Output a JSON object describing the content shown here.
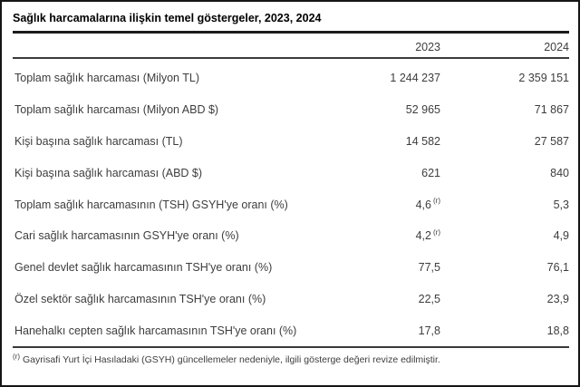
{
  "table": {
    "title": "Sağlık harcamalarına ilişkin temel göstergeler, 2023, 2024",
    "columns": {
      "col2023": "2023",
      "col2024": "2024"
    },
    "rows": [
      {
        "label": "Toplam sağlık harcaması (Milyon TL)",
        "y2023": "1 244 237",
        "y2024": "2 359 151"
      },
      {
        "label": "Toplam sağlık harcaması (Milyon ABD $)",
        "y2023": "52 965",
        "y2024": "71 867"
      },
      {
        "label": "Kişi başına sağlık harcaması (TL)",
        "y2023": "14 582",
        "y2024": "27 587"
      },
      {
        "label": "Kişi başına sağlık harcaması (ABD $)",
        "y2023": "621",
        "y2024": "840"
      },
      {
        "label": "Toplam sağlık harcamasının (TSH) GSYH'ye oranı (%)",
        "y2023": "4,6",
        "flag2023": "(r)",
        "y2024": "5,3"
      },
      {
        "label": "Cari sağlık harcamasının GSYH'ye oranı (%)",
        "y2023": "4,2",
        "flag2023": "(r)",
        "y2024": "4,9"
      },
      {
        "label": "Genel devlet sağlık harcamasının TSH'ye oranı (%)",
        "y2023": "77,5",
        "y2024": "76,1"
      },
      {
        "label": "Özel sektör sağlık harcamasının TSH'ye oranı (%)",
        "y2023": "22,5",
        "y2024": "23,9"
      },
      {
        "label": "Hanehalkı cepten sağlık harcamasının TSH'ye oranı (%)",
        "y2023": "17,8",
        "y2024": "18,8"
      }
    ],
    "footnote": {
      "marker": "(r)",
      "text": "Gayrisafi Yurt İçi Hasıladaki (GSYH) güncellemeler nedeniyle, ilgili gösterge değeri revize edilmiştir."
    }
  },
  "chart_data": {
    "type": "table",
    "title": "Sağlık harcamalarına ilişkin temel göstergeler, 2023, 2024",
    "columns": [
      "2023",
      "2024"
    ],
    "rows": [
      {
        "indicator": "Toplam sağlık harcaması (Milyon TL)",
        "2023": 1244237,
        "2024": 2359151
      },
      {
        "indicator": "Toplam sağlık harcaması (Milyon ABD $)",
        "2023": 52965,
        "2024": 71867
      },
      {
        "indicator": "Kişi başına sağlık harcaması (TL)",
        "2023": 14582,
        "2024": 27587
      },
      {
        "indicator": "Kişi başına sağlık harcaması (ABD $)",
        "2023": 621,
        "2024": 840
      },
      {
        "indicator": "Toplam sağlık harcamasının (TSH) GSYH'ye oranı (%)",
        "2023": 4.6,
        "2023_flag": "r",
        "2024": 5.3
      },
      {
        "indicator": "Cari sağlık harcamasının GSYH'ye oranı (%)",
        "2023": 4.2,
        "2023_flag": "r",
        "2024": 4.9
      },
      {
        "indicator": "Genel devlet sağlık harcamasının TSH'ye oranı (%)",
        "2023": 77.5,
        "2024": 76.1
      },
      {
        "indicator": "Özel sektör sağlık harcamasının TSH'ye oranı (%)",
        "2023": 22.5,
        "2024": 23.9
      },
      {
        "indicator": "Hanehalkı cepten sağlık harcamasının TSH'ye oranı (%)",
        "2023": 17.8,
        "2024": 18.8
      }
    ],
    "footnote": "(r) Gayrisafi Yurt İçi Hasıladaki (GSYH) güncellemeler nedeniyle, ilgili gösterge değeri revize edilmiştir."
  }
}
